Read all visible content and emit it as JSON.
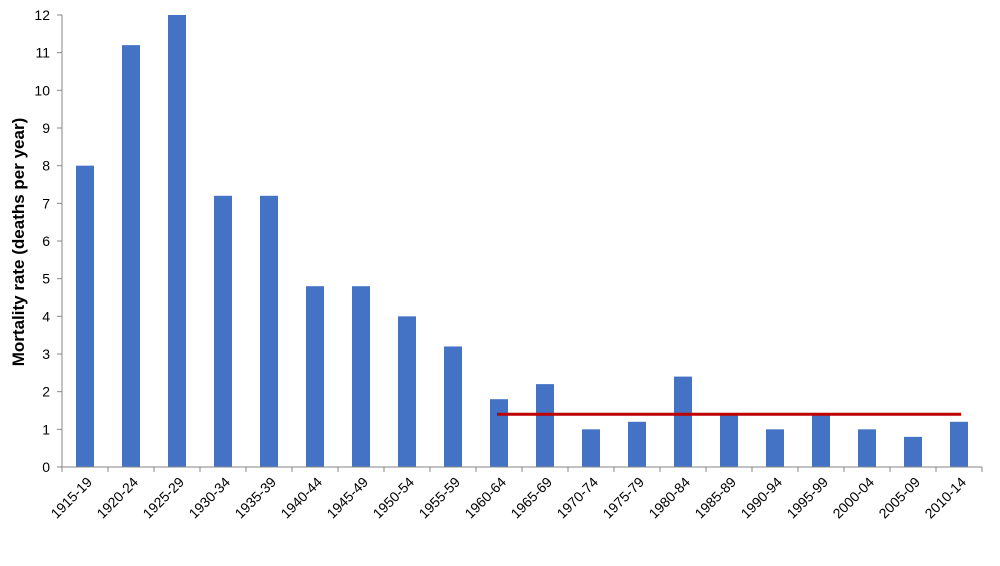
{
  "chart_data": {
    "type": "bar",
    "title": "",
    "xlabel": "",
    "ylabel": "Mortality rate (deaths per year)",
    "ylim": [
      0,
      12
    ],
    "yticks": [
      0,
      1,
      2,
      3,
      4,
      5,
      6,
      7,
      8,
      9,
      10,
      11,
      12
    ],
    "categories": [
      "1915-19",
      "1920-24",
      "1925-29",
      "1930-34",
      "1935-39",
      "1940-44",
      "1945-49",
      "1950-54",
      "1955-59",
      "1960-64",
      "1965-69",
      "1970-74",
      "1975-79",
      "1980-84",
      "1985-89",
      "1990-94",
      "1995-99",
      "2000-04",
      "2005-09",
      "2010-14"
    ],
    "values": [
      8,
      11.2,
      12,
      7.2,
      7.2,
      4.8,
      4.8,
      4,
      3.2,
      1.8,
      2.2,
      1,
      1.2,
      2.4,
      1.4,
      1,
      1.4,
      1,
      0.8,
      1.2
    ],
    "bar_color": "#4472C4",
    "reference_line": {
      "value": 1.4,
      "from_category": "1960-64",
      "to_category": "2010-14",
      "color": "#C00000"
    },
    "grid": false,
    "legend": "none"
  }
}
